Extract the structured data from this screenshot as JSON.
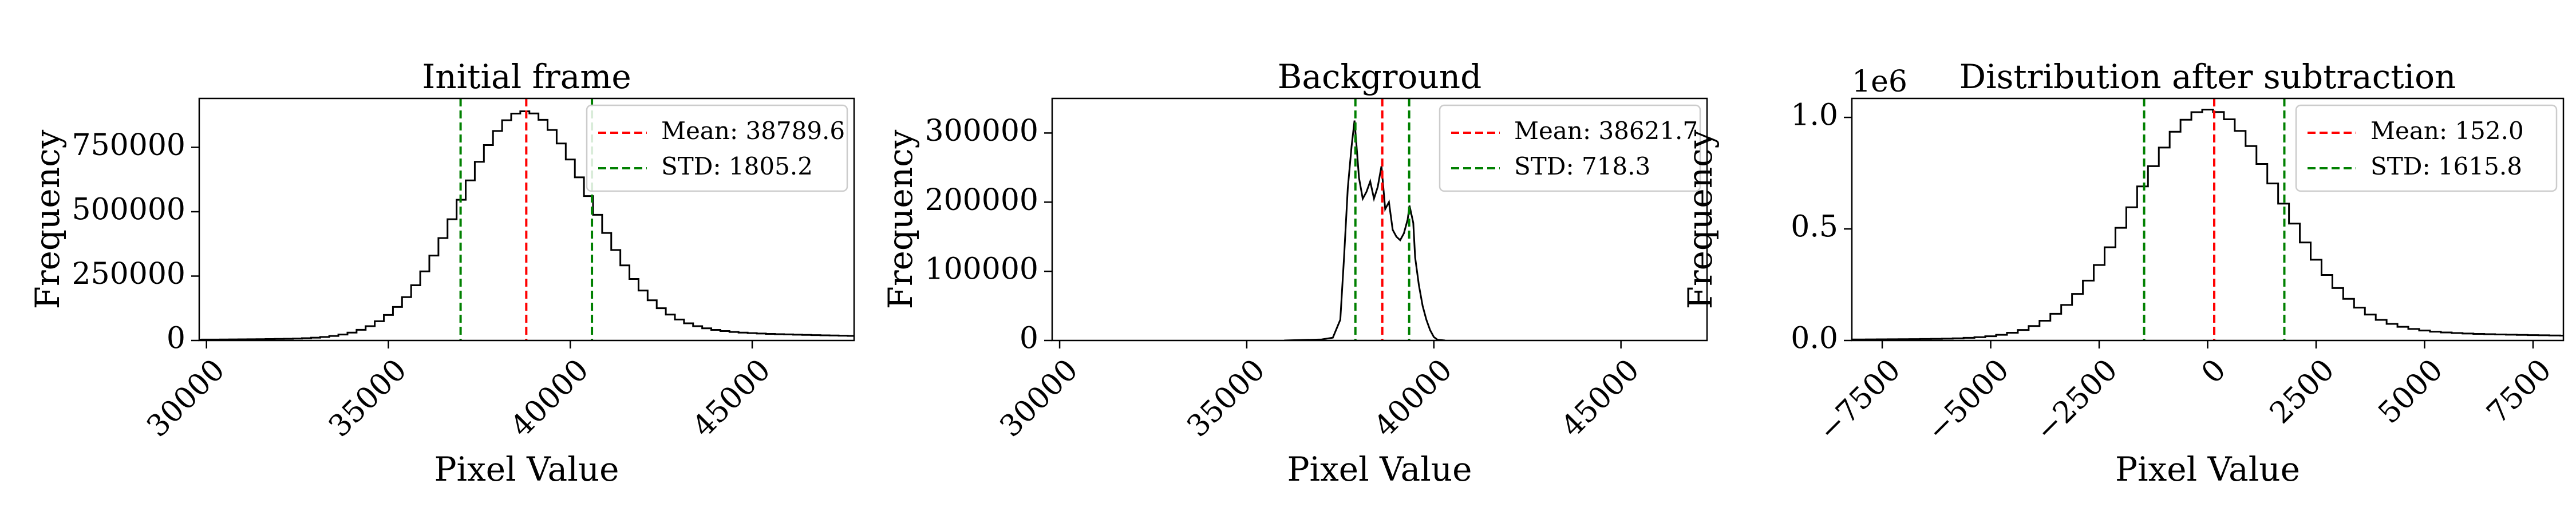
{
  "figure": {
    "colors": {
      "line": "#000000",
      "mean": "#ff0000",
      "std": "#008000",
      "legend_border": "#cccccc"
    }
  },
  "chart_data": [
    {
      "type": "histogram",
      "title": "Initial frame",
      "xlabel": "Pixel Value",
      "ylabel": "Frequency",
      "xlim": [
        29800,
        47800
      ],
      "ylim": [
        0,
        940000
      ],
      "xticks": [
        30000,
        35000,
        40000,
        45000
      ],
      "xtick_labels": [
        "30000",
        "35000",
        "40000",
        "45000"
      ],
      "yticks": [
        0,
        250000,
        500000,
        750000
      ],
      "ytick_labels": [
        "0",
        "250000",
        "500000",
        "750000"
      ],
      "y_multiplier": "",
      "mean": 38789.6,
      "std": 1805.2,
      "legend": {
        "mean_label": "Mean: 38789.6",
        "std_label": "STD: 1805.2",
        "position": "upper-right"
      },
      "hist_model": {
        "type": "gauss",
        "x0": 38750,
        "amp": 890000,
        "sigma": 1750,
        "tail_sigma": 3000,
        "tail_amp": 70000,
        "bin": 250
      }
    },
    {
      "type": "histogram",
      "title": "Background",
      "xlabel": "Pixel Value",
      "ylabel": "Frequency",
      "xlim": [
        29800,
        47300
      ],
      "ylim": [
        0,
        350000
      ],
      "xticks": [
        30000,
        35000,
        40000,
        45000
      ],
      "xtick_labels": [
        "30000",
        "35000",
        "40000",
        "45000"
      ],
      "yticks": [
        0,
        100000,
        200000,
        300000
      ],
      "ytick_labels": [
        "0",
        "100000",
        "200000",
        "300000"
      ],
      "y_multiplier": "",
      "mean": 38621.7,
      "std": 718.3,
      "legend": {
        "mean_label": "Mean: 38621.7",
        "std_label": "STD: 718.3",
        "position": "upper-right"
      },
      "hist_points": [
        [
          36000,
          0
        ],
        [
          37000,
          1500
        ],
        [
          37300,
          4000
        ],
        [
          37500,
          30000
        ],
        [
          37600,
          120000
        ],
        [
          37700,
          220000
        ],
        [
          37800,
          280000
        ],
        [
          37880,
          318000
        ],
        [
          37950,
          270000
        ],
        [
          38000,
          235000
        ],
        [
          38100,
          205000
        ],
        [
          38200,
          215000
        ],
        [
          38300,
          230000
        ],
        [
          38400,
          205000
        ],
        [
          38500,
          222000
        ],
        [
          38600,
          252000
        ],
        [
          38700,
          190000
        ],
        [
          38800,
          200000
        ],
        [
          38900,
          160000
        ],
        [
          39000,
          150000
        ],
        [
          39100,
          145000
        ],
        [
          39200,
          155000
        ],
        [
          39300,
          175000
        ],
        [
          39350,
          195000
        ],
        [
          39450,
          170000
        ],
        [
          39500,
          120000
        ],
        [
          39600,
          80000
        ],
        [
          39700,
          50000
        ],
        [
          39800,
          30000
        ],
        [
          39900,
          15000
        ],
        [
          40000,
          5000
        ],
        [
          40100,
          1000
        ],
        [
          40300,
          0
        ]
      ]
    },
    {
      "type": "histogram",
      "title": "Distribution after subtraction",
      "xlabel": "Pixel Value",
      "ylabel": "Frequency",
      "xlim": [
        -8200,
        8200
      ],
      "ylim": [
        0,
        1085000
      ],
      "xticks": [
        -7500,
        -5000,
        -2500,
        0,
        2500,
        5000,
        7500
      ],
      "xtick_labels": [
        "−7500",
        "−5000",
        "−2500",
        "0",
        "2500",
        "5000",
        "7500"
      ],
      "yticks": [
        0,
        500000,
        1000000
      ],
      "ytick_labels": [
        "0.0",
        "0.5",
        "1.0"
      ],
      "y_multiplier": "1e6",
      "mean": 152.0,
      "std": 1615.8,
      "legend": {
        "mean_label": "Mean: 152.0",
        "std_label": "STD: 1615.8",
        "position": "upper-right"
      },
      "hist_model": {
        "type": "gauss",
        "x0": 0,
        "amp": 1035000,
        "sigma": 1650,
        "tail_sigma": 3200,
        "tail_amp": 70000,
        "bin": 250
      }
    }
  ]
}
